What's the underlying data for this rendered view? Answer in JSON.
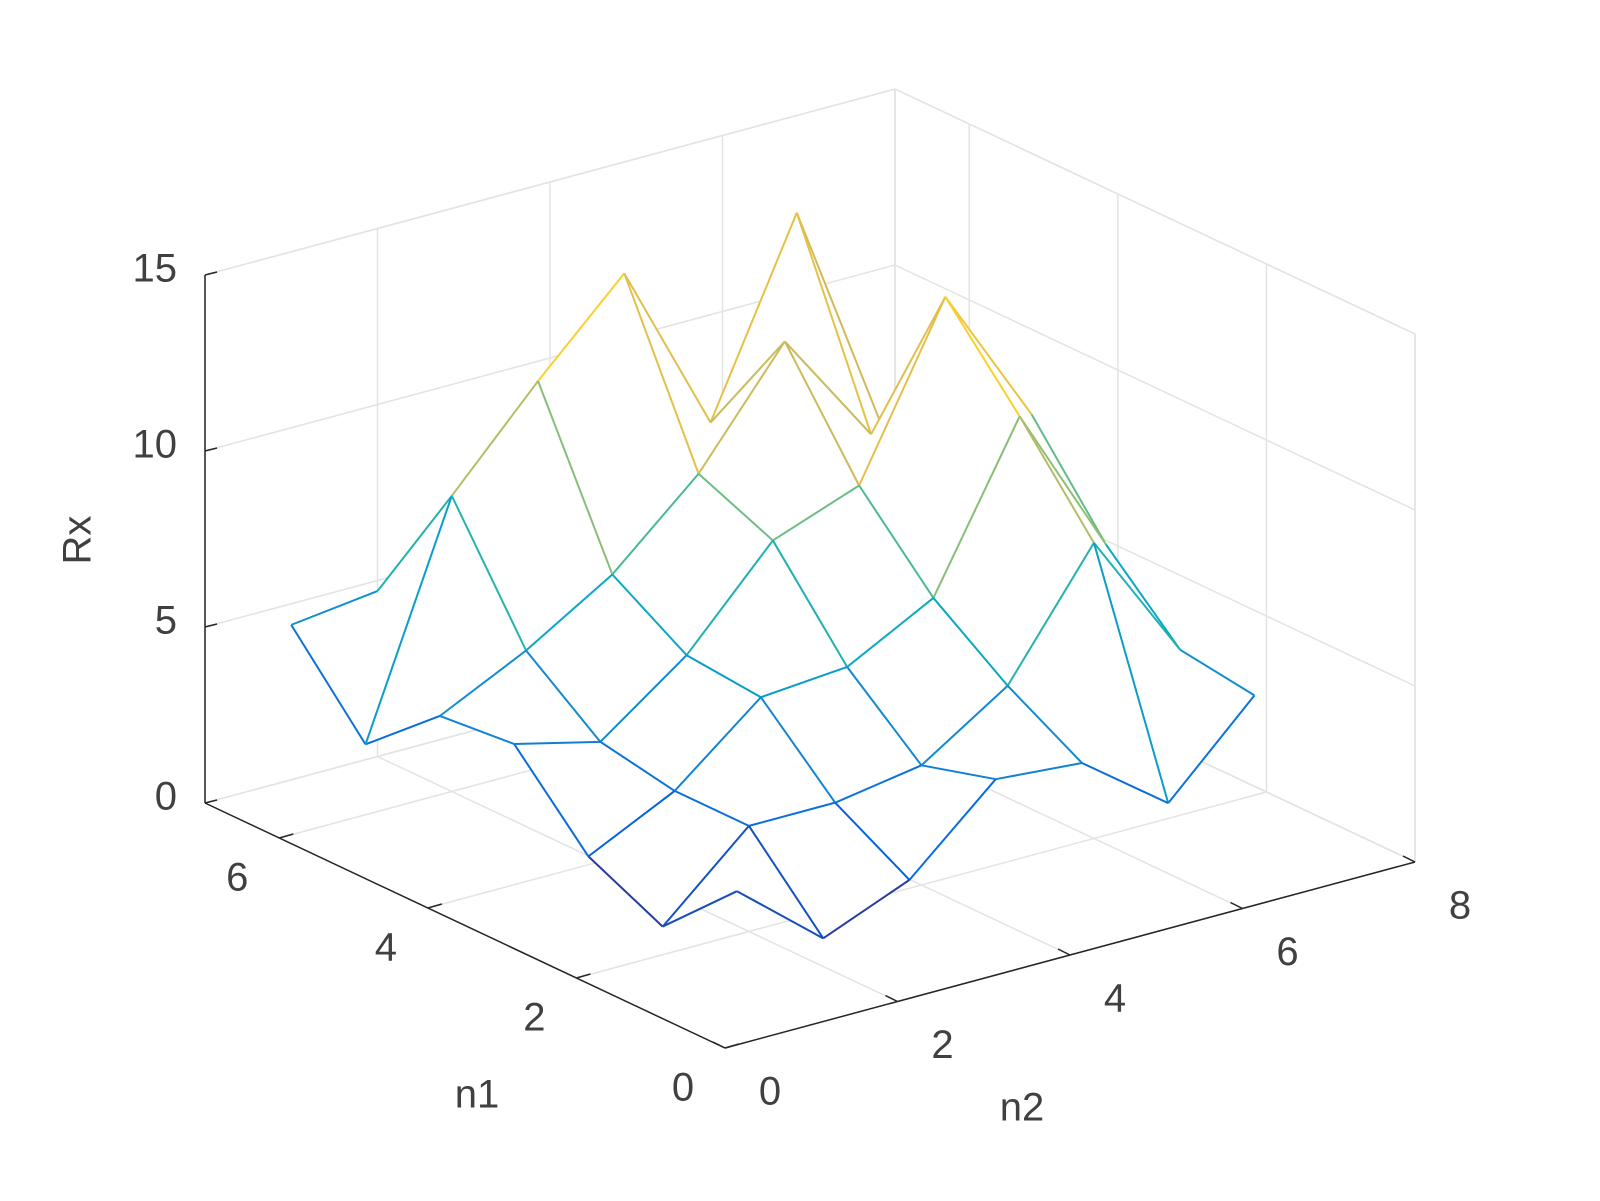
{
  "chart_data": {
    "type": "mesh",
    "xlabel": "n2",
    "ylabel": "n1",
    "zlabel": "Rx",
    "x": [
      1,
      2,
      3,
      4,
      5,
      6,
      7
    ],
    "y": [
      1,
      2,
      3,
      4,
      5,
      6,
      7
    ],
    "z": [
      [
        2.8,
        0.8,
        1.8,
        4.0,
        3.8,
        2.0,
        4.4
      ],
      [
        0.8,
        3.0,
        3.0,
        3.4,
        5.0,
        8.4,
        4.7
      ],
      [
        1.8,
        3.0,
        5.0,
        5.2,
        6.5,
        11.0,
        6.7
      ],
      [
        4.0,
        3.4,
        5.2,
        7.8,
        8.7,
        13.4,
        9.4
      ],
      [
        3.8,
        5.0,
        6.5,
        8.7,
        11.8,
        8.5,
        6.9
      ],
      [
        2.0,
        8.4,
        11.0,
        13.4,
        8.5,
        13.8,
        7.0
      ],
      [
        4.4,
        4.7,
        6.7,
        9.4,
        6.9,
        7.0,
        6.0
      ]
    ],
    "xlim": [
      0,
      8
    ],
    "ylim": [
      0,
      7
    ],
    "zlim": [
      0,
      15
    ],
    "xticks": [
      0,
      2,
      4,
      6,
      8
    ],
    "yticks": [
      0,
      2,
      4,
      6
    ],
    "zticks": [
      0,
      5,
      10,
      15
    ],
    "grid": true,
    "colormap": "parula"
  }
}
